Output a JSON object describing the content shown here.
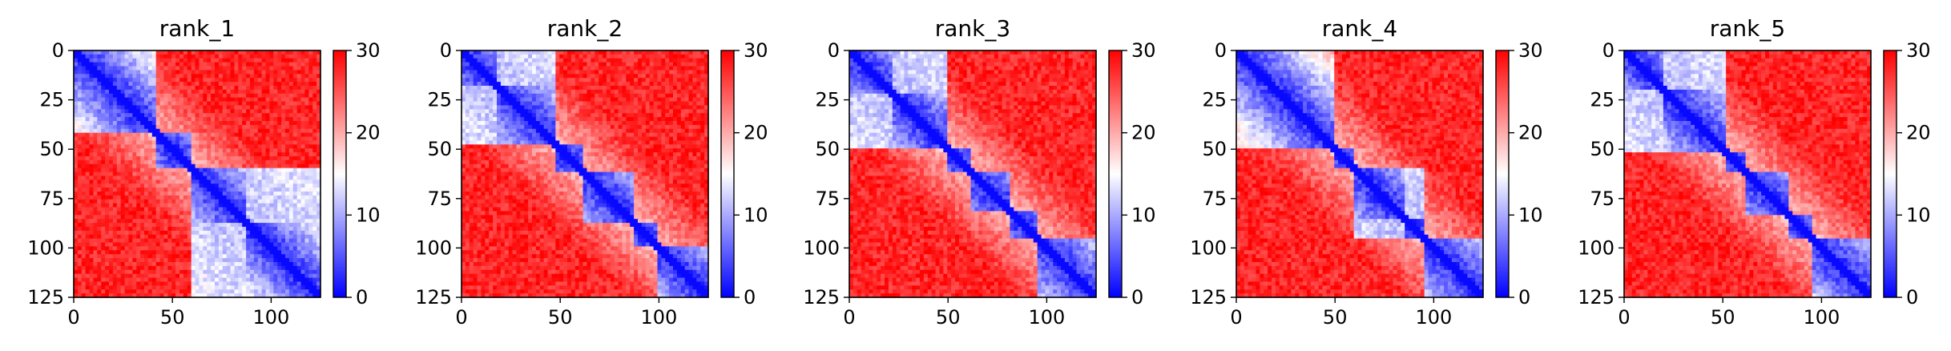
{
  "chart_data": [
    {
      "type": "heatmap",
      "title": "rank_1",
      "xlabel": "",
      "ylabel": "",
      "xlim": [
        0,
        125
      ],
      "ylim": [
        125,
        0
      ],
      "xticks": [
        "0",
        "50",
        "100"
      ],
      "yticks": [
        "0",
        "25",
        "50",
        "75",
        "100",
        "125"
      ],
      "colorbar": {
        "ticks": [
          "0",
          "10",
          "20",
          "30"
        ],
        "range": [
          0,
          30
        ],
        "colormap": "bwr"
      },
      "matrix_size": 125,
      "domains": [
        [
          0,
          42
        ],
        [
          42,
          60
        ],
        [
          60,
          88
        ],
        [
          88,
          125
        ]
      ],
      "group_blocks": [
        [
          [
            60,
            88
          ],
          [
            88,
            125
          ]
        ]
      ]
    },
    {
      "type": "heatmap",
      "title": "rank_2",
      "xlabel": "",
      "ylabel": "",
      "xlim": [
        0,
        125
      ],
      "ylim": [
        125,
        0
      ],
      "xticks": [
        "0",
        "50",
        "100"
      ],
      "yticks": [
        "0",
        "25",
        "50",
        "75",
        "100",
        "125"
      ],
      "colorbar": {
        "ticks": [
          "0",
          "10",
          "20",
          "30"
        ],
        "range": [
          0,
          30
        ],
        "colormap": "bwr"
      },
      "matrix_size": 125,
      "domains": [
        [
          0,
          18
        ],
        [
          18,
          48
        ],
        [
          48,
          62
        ],
        [
          62,
          88
        ],
        [
          88,
          100
        ],
        [
          100,
          125
        ]
      ],
      "group_blocks": [
        [
          [
            0,
            18
          ],
          [
            18,
            48
          ]
        ]
      ]
    },
    {
      "type": "heatmap",
      "title": "rank_3",
      "xlabel": "",
      "ylabel": "",
      "xlim": [
        0,
        125
      ],
      "ylim": [
        125,
        0
      ],
      "xticks": [
        "0",
        "50",
        "100"
      ],
      "yticks": [
        "0",
        "25",
        "50",
        "75",
        "100",
        "125"
      ],
      "colorbar": {
        "ticks": [
          "0",
          "10",
          "20",
          "30"
        ],
        "range": [
          0,
          30
        ],
        "colormap": "bwr"
      },
      "matrix_size": 125,
      "domains": [
        [
          0,
          22
        ],
        [
          22,
          50
        ],
        [
          50,
          62
        ],
        [
          62,
          82
        ],
        [
          82,
          96
        ],
        [
          96,
          125
        ]
      ],
      "group_blocks": [
        [
          [
            0,
            22
          ],
          [
            22,
            50
          ]
        ]
      ]
    },
    {
      "type": "heatmap",
      "title": "rank_4",
      "xlabel": "",
      "ylabel": "",
      "xlim": [
        0,
        125
      ],
      "ylim": [
        125,
        0
      ],
      "xticks": [
        "0",
        "50",
        "100"
      ],
      "yticks": [
        "0",
        "25",
        "50",
        "75",
        "100",
        "125"
      ],
      "colorbar": {
        "ticks": [
          "0",
          "10",
          "20",
          "30"
        ],
        "range": [
          0,
          30
        ],
        "colormap": "bwr"
      },
      "matrix_size": 125,
      "domains": [
        [
          0,
          50
        ],
        [
          50,
          60
        ],
        [
          60,
          85
        ],
        [
          85,
          96
        ],
        [
          96,
          125
        ]
      ],
      "group_blocks": [
        [
          [
            60,
            85
          ],
          [
            85,
            96
          ]
        ]
      ]
    },
    {
      "type": "heatmap",
      "title": "rank_5",
      "xlabel": "",
      "ylabel": "",
      "xlim": [
        0,
        125
      ],
      "ylim": [
        125,
        0
      ],
      "xticks": [
        "0",
        "50",
        "100"
      ],
      "yticks": [
        "0",
        "25",
        "50",
        "75",
        "100",
        "125"
      ],
      "colorbar": {
        "ticks": [
          "0",
          "10",
          "20",
          "30"
        ],
        "range": [
          0,
          30
        ],
        "colormap": "bwr"
      },
      "matrix_size": 125,
      "domains": [
        [
          0,
          20
        ],
        [
          20,
          52
        ],
        [
          52,
          62
        ],
        [
          62,
          84
        ],
        [
          84,
          96
        ],
        [
          96,
          125
        ]
      ],
      "group_blocks": [
        [
          [
            0,
            20
          ],
          [
            20,
            52
          ]
        ]
      ]
    }
  ]
}
